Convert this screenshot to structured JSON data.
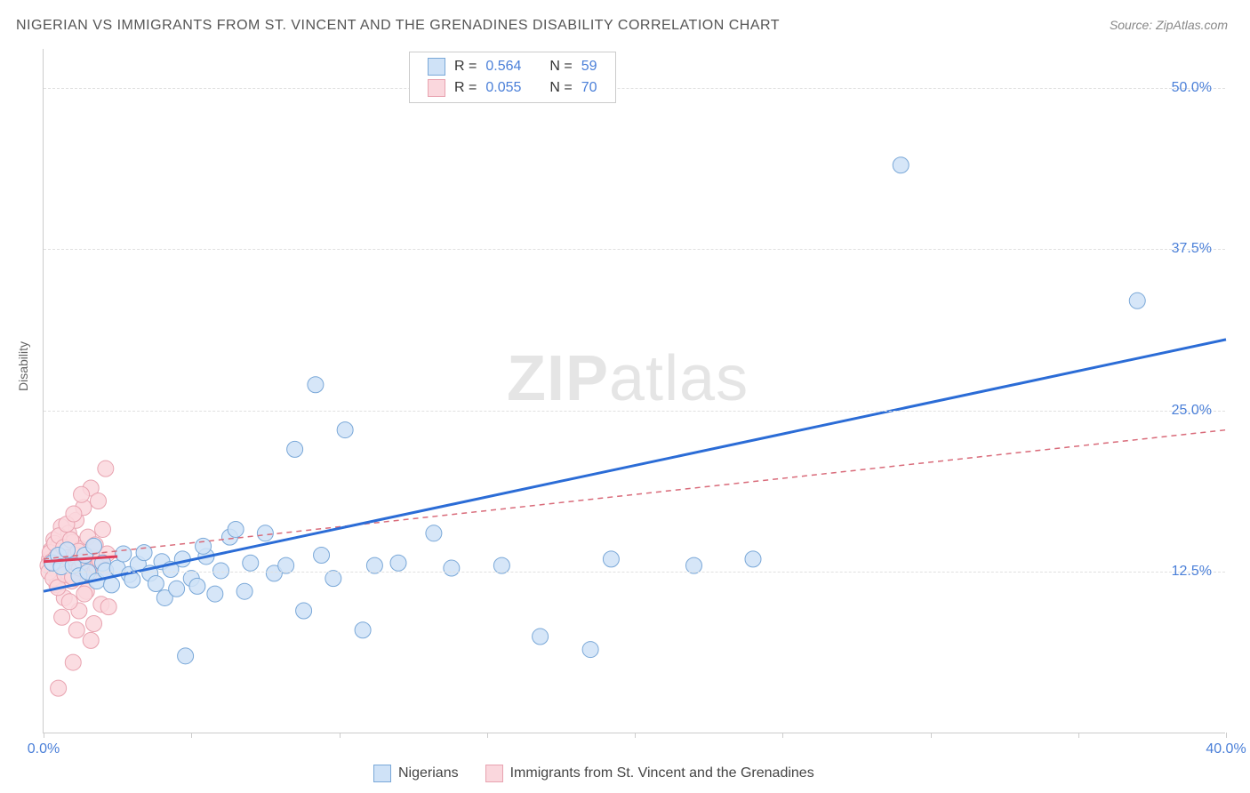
{
  "title": "NIGERIAN VS IMMIGRANTS FROM ST. VINCENT AND THE GRENADINES DISABILITY CORRELATION CHART",
  "source": "Source: ZipAtlas.com",
  "watermark_bold": "ZIP",
  "watermark_light": "atlas",
  "y_axis_title": "Disability",
  "chart": {
    "type": "scatter",
    "background_color": "#ffffff",
    "grid_color": "#e0e0e0",
    "axis_color": "#cccccc",
    "xlim": [
      0,
      40
    ],
    "ylim": [
      0,
      53
    ],
    "x_ticks": [
      0,
      5,
      10,
      15,
      20,
      25,
      30,
      35,
      40
    ],
    "x_tick_labels_shown": {
      "0": "0.0%",
      "40": "40.0%"
    },
    "y_ticks": [
      12.5,
      25.0,
      37.5,
      50.0
    ],
    "y_tick_labels": [
      "12.5%",
      "25.0%",
      "37.5%",
      "50.0%"
    ],
    "marker_radius": 9,
    "marker_stroke_width": 1,
    "series": [
      {
        "name": "Nigerians",
        "legend_label": "Nigerians",
        "color_fill": "#cfe2f7",
        "color_stroke": "#7aa8d8",
        "r_value": "0.564",
        "n_value": "59",
        "trend": {
          "x1": 0,
          "y1": 11.0,
          "x2": 40,
          "y2": 30.5,
          "stroke": "#2b6cd6",
          "width": 3,
          "dash": "none"
        },
        "points": [
          [
            0.3,
            13.2
          ],
          [
            0.5,
            13.8
          ],
          [
            0.6,
            12.9
          ],
          [
            0.8,
            14.2
          ],
          [
            1.0,
            13.0
          ],
          [
            1.2,
            12.2
          ],
          [
            1.4,
            13.8
          ],
          [
            1.5,
            12.5
          ],
          [
            1.7,
            14.5
          ],
          [
            1.8,
            11.8
          ],
          [
            2.0,
            13.2
          ],
          [
            2.1,
            12.6
          ],
          [
            2.3,
            11.5
          ],
          [
            2.5,
            12.8
          ],
          [
            2.7,
            13.9
          ],
          [
            2.9,
            12.3
          ],
          [
            3.0,
            11.9
          ],
          [
            3.2,
            13.1
          ],
          [
            3.4,
            14.0
          ],
          [
            3.6,
            12.4
          ],
          [
            3.8,
            11.6
          ],
          [
            4.0,
            13.3
          ],
          [
            4.1,
            10.5
          ],
          [
            4.3,
            12.7
          ],
          [
            4.5,
            11.2
          ],
          [
            4.7,
            13.5
          ],
          [
            5.0,
            12.0
          ],
          [
            5.2,
            11.4
          ],
          [
            5.5,
            13.7
          ],
          [
            5.8,
            10.8
          ],
          [
            6.0,
            12.6
          ],
          [
            6.3,
            15.2
          ],
          [
            6.5,
            15.8
          ],
          [
            6.8,
            11.0
          ],
          [
            7.0,
            13.2
          ],
          [
            7.5,
            15.5
          ],
          [
            7.8,
            12.4
          ],
          [
            8.2,
            13.0
          ],
          [
            8.5,
            22.0
          ],
          [
            8.8,
            9.5
          ],
          [
            9.2,
            27.0
          ],
          [
            9.4,
            13.8
          ],
          [
            9.8,
            12.0
          ],
          [
            10.2,
            23.5
          ],
          [
            10.8,
            8.0
          ],
          [
            11.2,
            13.0
          ],
          [
            12.0,
            13.2
          ],
          [
            13.2,
            15.5
          ],
          [
            13.8,
            12.8
          ],
          [
            15.5,
            13.0
          ],
          [
            16.8,
            7.5
          ],
          [
            18.5,
            6.5
          ],
          [
            19.2,
            13.5
          ],
          [
            22.0,
            13.0
          ],
          [
            24.0,
            13.5
          ],
          [
            29.0,
            44.0
          ],
          [
            37.0,
            33.5
          ],
          [
            4.8,
            6.0
          ],
          [
            5.4,
            14.5
          ]
        ]
      },
      {
        "name": "Immigrants from St. Vincent and the Grenadines",
        "legend_label": "Immigrants from St. Vincent and the Grenadines",
        "color_fill": "#fad7dd",
        "color_stroke": "#e8a3b0",
        "r_value": "0.055",
        "n_value": "70",
        "trend": {
          "x1": 0,
          "y1": 13.5,
          "x2": 40,
          "y2": 23.5,
          "stroke": "#d96b7a",
          "width": 1.5,
          "dash": "6,5"
        },
        "trend_solid": {
          "x1": 0,
          "y1": 13.3,
          "x2": 2.5,
          "y2": 13.7,
          "stroke": "#e03c5a",
          "width": 3
        },
        "points": [
          [
            0.2,
            13.5
          ],
          [
            0.25,
            14.2
          ],
          [
            0.3,
            12.8
          ],
          [
            0.35,
            15.0
          ],
          [
            0.4,
            13.2
          ],
          [
            0.45,
            11.5
          ],
          [
            0.5,
            14.5
          ],
          [
            0.55,
            12.2
          ],
          [
            0.6,
            16.0
          ],
          [
            0.65,
            13.8
          ],
          [
            0.7,
            10.5
          ],
          [
            0.75,
            14.0
          ],
          [
            0.8,
            12.5
          ],
          [
            0.85,
            15.5
          ],
          [
            0.9,
            13.0
          ],
          [
            0.95,
            11.8
          ],
          [
            1.0,
            14.8
          ],
          [
            1.05,
            12.0
          ],
          [
            1.1,
            16.5
          ],
          [
            1.15,
            13.5
          ],
          [
            1.2,
            9.5
          ],
          [
            1.25,
            14.3
          ],
          [
            1.3,
            12.7
          ],
          [
            1.35,
            17.5
          ],
          [
            1.4,
            13.2
          ],
          [
            1.45,
            11.0
          ],
          [
            1.5,
            15.2
          ],
          [
            1.55,
            12.4
          ],
          [
            1.6,
            19.0
          ],
          [
            1.65,
            13.7
          ],
          [
            1.7,
            8.5
          ],
          [
            1.75,
            14.6
          ],
          [
            1.8,
            12.9
          ],
          [
            1.85,
            18.0
          ],
          [
            1.9,
            13.4
          ],
          [
            1.95,
            10.0
          ],
          [
            2.0,
            15.8
          ],
          [
            2.05,
            12.6
          ],
          [
            2.1,
            20.5
          ],
          [
            2.15,
            13.9
          ],
          [
            0.15,
            13.0
          ],
          [
            0.18,
            12.5
          ],
          [
            0.22,
            14.0
          ],
          [
            0.28,
            13.3
          ],
          [
            0.32,
            12.0
          ],
          [
            0.38,
            14.7
          ],
          [
            0.42,
            13.6
          ],
          [
            0.48,
            11.3
          ],
          [
            0.52,
            15.3
          ],
          [
            0.58,
            13.1
          ],
          [
            0.62,
            9.0
          ],
          [
            0.68,
            14.4
          ],
          [
            0.72,
            12.3
          ],
          [
            0.78,
            16.2
          ],
          [
            0.82,
            13.6
          ],
          [
            0.88,
            10.2
          ],
          [
            0.92,
            15.0
          ],
          [
            0.98,
            12.1
          ],
          [
            1.02,
            17.0
          ],
          [
            1.08,
            13.8
          ],
          [
            1.12,
            8.0
          ],
          [
            1.18,
            14.1
          ],
          [
            1.22,
            12.8
          ],
          [
            1.28,
            18.5
          ],
          [
            1.32,
            13.3
          ],
          [
            1.38,
            10.8
          ],
          [
            0.5,
            3.5
          ],
          [
            1.0,
            5.5
          ],
          [
            2.2,
            9.8
          ],
          [
            1.6,
            7.2
          ]
        ]
      }
    ]
  },
  "legend_top": {
    "r_prefix": "R = ",
    "n_prefix": "N = "
  },
  "colors": {
    "tick_label": "#4a7fd8",
    "title_text": "#555555",
    "source_text": "#888888"
  }
}
